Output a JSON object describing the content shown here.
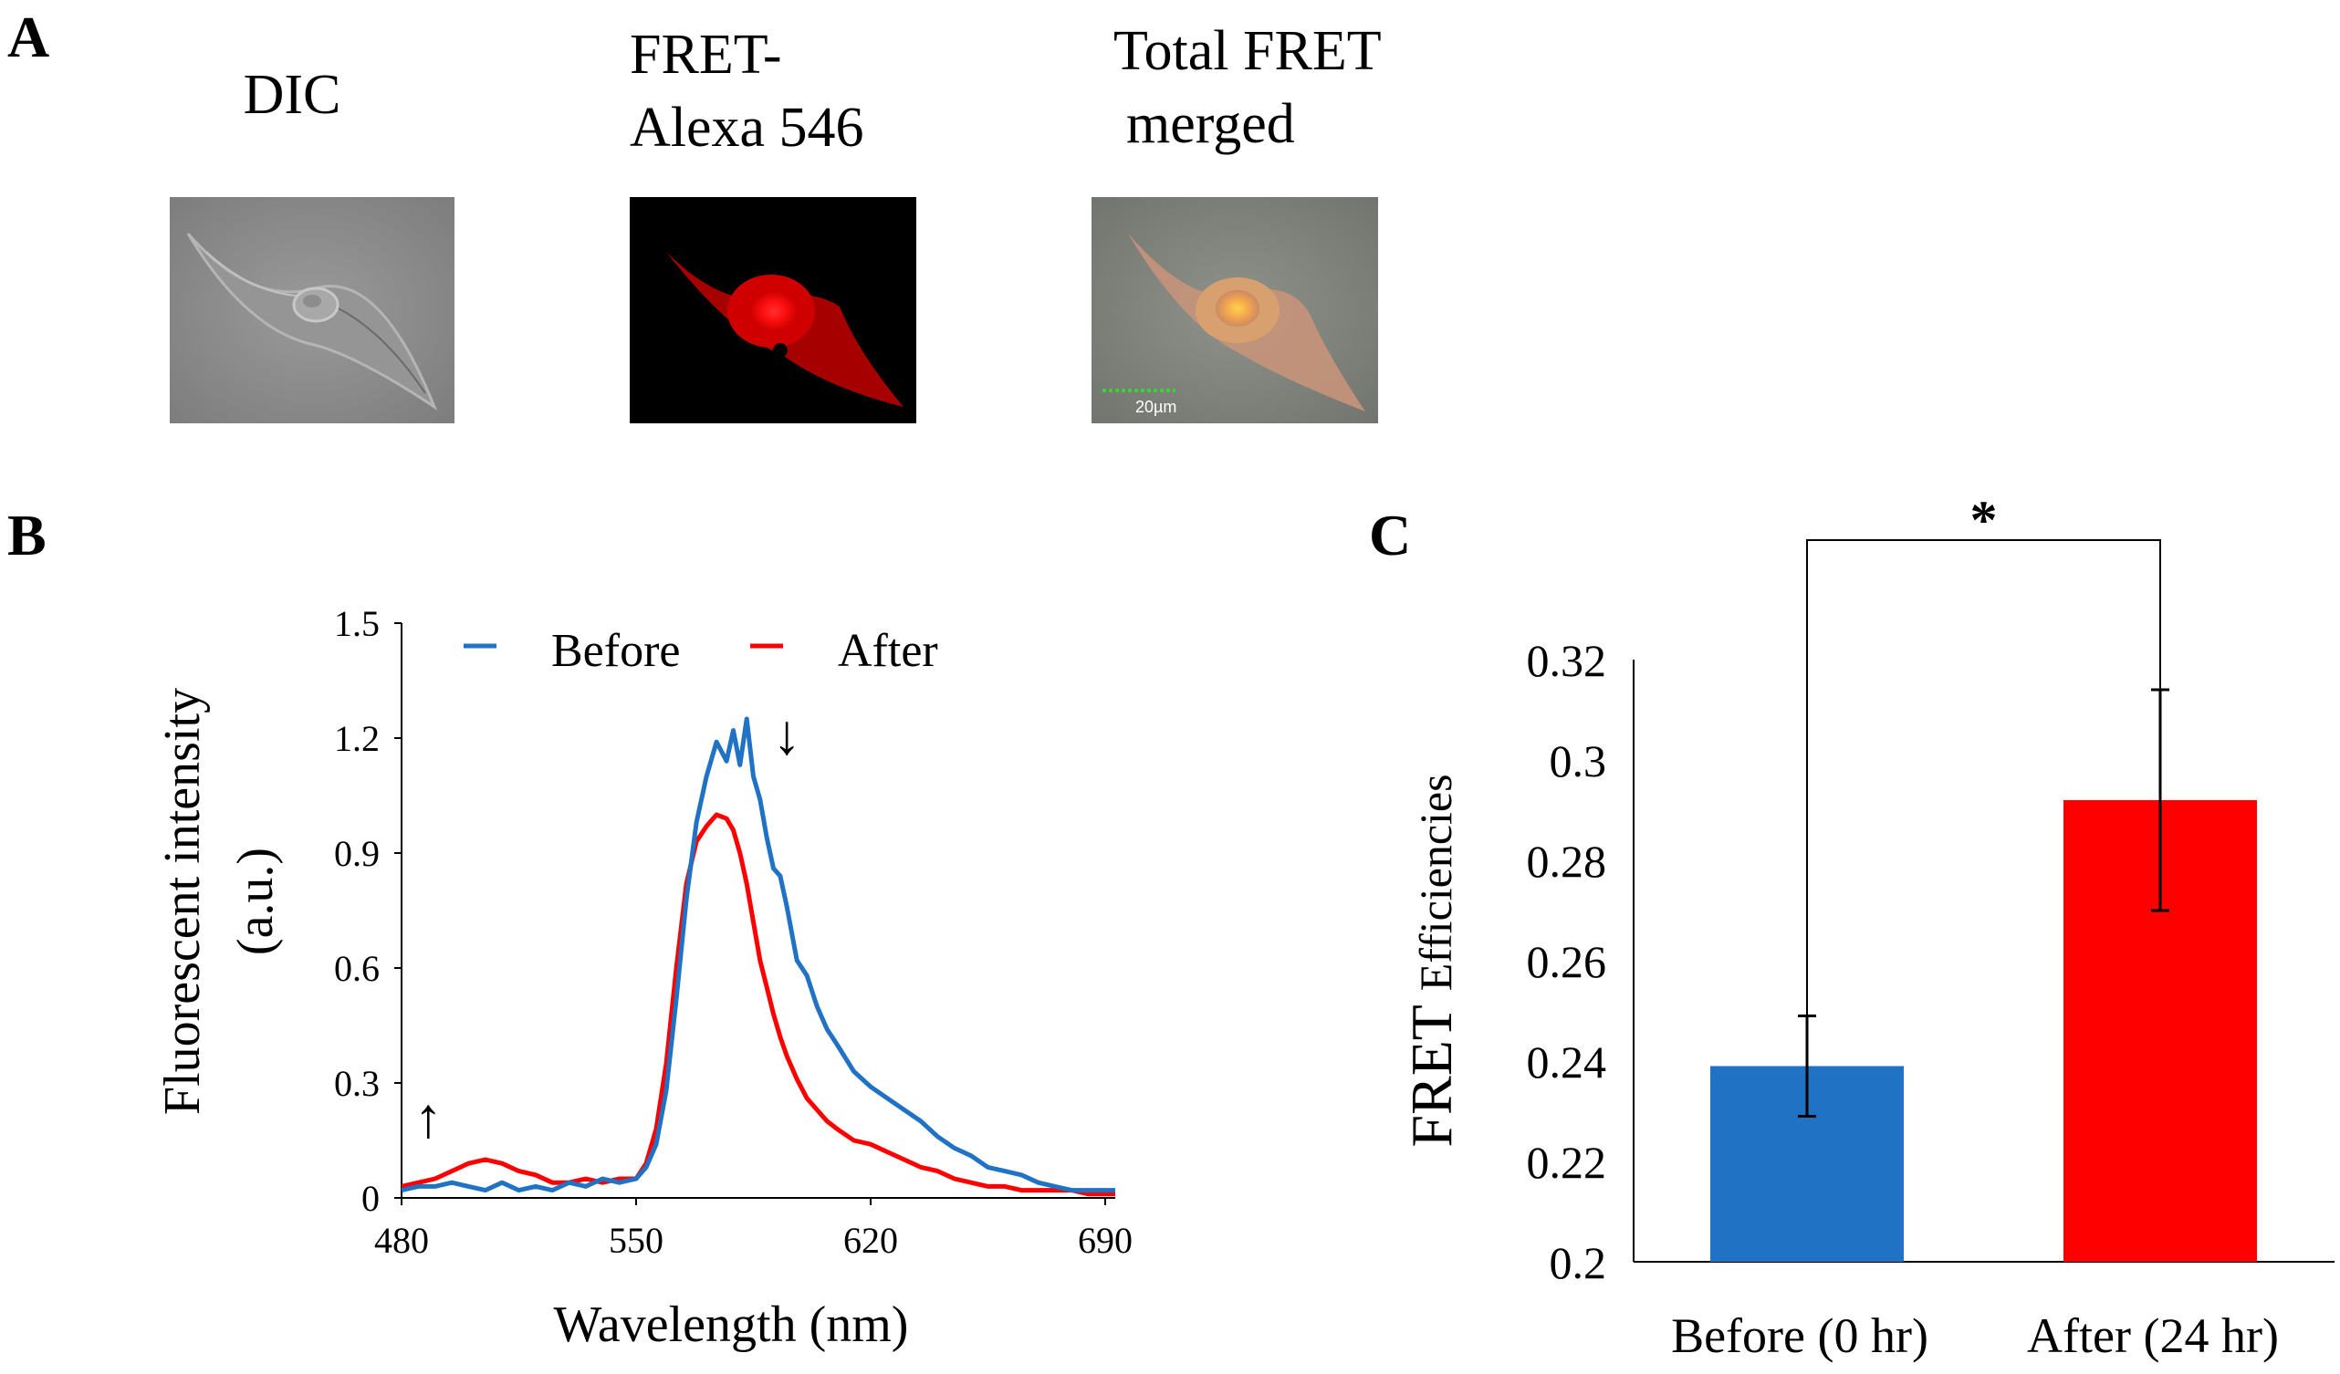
{
  "panels": {
    "a": {
      "letter": "A"
    },
    "b": {
      "letter": "B"
    },
    "c": {
      "letter": "C"
    }
  },
  "micrographs": [
    {
      "caption_lines": [
        "DIC"
      ],
      "kind": "dic"
    },
    {
      "caption_lines": [
        "FRET-",
        "Alexa 546"
      ],
      "kind": "fret"
    },
    {
      "caption_lines": [
        "Total FRET",
        "merged"
      ],
      "kind": "merged",
      "scale_bar_label": "20µm"
    }
  ],
  "colors": {
    "before": "#1f72c4",
    "after": "#ff0000",
    "axis": "#000000",
    "scale_bar": "#3bd13b"
  },
  "chart_data": [
    {
      "id": "spectrum",
      "type": "line",
      "xlabel": "Wavelength (nm)",
      "ylabel_lines": [
        "Fluorescent intensity",
        "(a.u.)"
      ],
      "xlim": [
        480,
        693
      ],
      "ylim": [
        0,
        1.5
      ],
      "xticks": [
        480,
        550,
        620,
        690
      ],
      "yticks": [
        0,
        0.3,
        0.6,
        0.9,
        1.2,
        1.5
      ],
      "ytick_labels": [
        "0",
        "0.3",
        "0.6",
        "0.9",
        "1.2",
        "1.5"
      ],
      "legend": [
        "Before",
        "After"
      ],
      "annotations": [
        {
          "symbol": "↑",
          "x": 488,
          "y": 0.16,
          "meaning": "after-curve increase"
        },
        {
          "symbol": "↓",
          "x": 595,
          "y": 1.16,
          "meaning": "before-curve decrease"
        }
      ],
      "series": [
        {
          "name": "Before",
          "x": [
            480,
            485,
            490,
            495,
            500,
            505,
            510,
            515,
            520,
            525,
            530,
            535,
            540,
            545,
            550,
            553,
            556,
            559,
            562,
            565,
            568,
            571,
            574,
            577,
            579,
            581,
            583,
            585,
            587,
            589,
            591,
            593,
            595,
            598,
            601,
            604,
            607,
            610,
            615,
            620,
            625,
            630,
            635,
            640,
            645,
            650,
            655,
            660,
            665,
            670,
            675,
            680,
            685,
            690,
            693
          ],
          "y": [
            0.02,
            0.03,
            0.03,
            0.04,
            0.03,
            0.02,
            0.04,
            0.02,
            0.03,
            0.02,
            0.04,
            0.03,
            0.05,
            0.04,
            0.05,
            0.08,
            0.14,
            0.28,
            0.52,
            0.78,
            0.98,
            1.1,
            1.19,
            1.14,
            1.22,
            1.13,
            1.25,
            1.1,
            1.04,
            0.94,
            0.86,
            0.84,
            0.76,
            0.62,
            0.58,
            0.5,
            0.44,
            0.4,
            0.33,
            0.29,
            0.26,
            0.23,
            0.2,
            0.16,
            0.13,
            0.11,
            0.08,
            0.07,
            0.06,
            0.04,
            0.03,
            0.02,
            0.02,
            0.02,
            0.02
          ]
        },
        {
          "name": "After",
          "x": [
            480,
            485,
            490,
            495,
            500,
            505,
            510,
            515,
            520,
            525,
            530,
            535,
            540,
            545,
            550,
            553,
            556,
            559,
            562,
            565,
            568,
            571,
            574,
            577,
            579,
            581,
            583,
            585,
            587,
            589,
            591,
            593,
            595,
            598,
            601,
            604,
            607,
            610,
            615,
            620,
            625,
            630,
            635,
            640,
            645,
            650,
            655,
            660,
            665,
            670,
            675,
            680,
            685,
            690,
            693
          ],
          "y": [
            0.03,
            0.04,
            0.05,
            0.07,
            0.09,
            0.1,
            0.09,
            0.07,
            0.06,
            0.04,
            0.04,
            0.05,
            0.04,
            0.05,
            0.05,
            0.09,
            0.18,
            0.35,
            0.6,
            0.82,
            0.93,
            0.97,
            1.0,
            0.99,
            0.96,
            0.9,
            0.82,
            0.72,
            0.62,
            0.55,
            0.48,
            0.42,
            0.37,
            0.31,
            0.26,
            0.23,
            0.2,
            0.18,
            0.15,
            0.14,
            0.12,
            0.1,
            0.08,
            0.07,
            0.05,
            0.04,
            0.03,
            0.03,
            0.02,
            0.02,
            0.02,
            0.02,
            0.01,
            0.01,
            0.01
          ]
        }
      ]
    },
    {
      "id": "efficiency",
      "type": "bar",
      "categories": [
        "Before (0 hr)",
        "After (24 hr)"
      ],
      "values": [
        0.239,
        0.292
      ],
      "errors": [
        0.01,
        0.022
      ],
      "ylim": [
        0.2,
        0.32
      ],
      "yticks": [
        0.2,
        0.22,
        0.24,
        0.26,
        0.28,
        0.3,
        0.32
      ],
      "ytick_labels": [
        "0.2",
        "0.22",
        "0.24",
        "0.26",
        "0.28",
        "0.3",
        "0.32"
      ],
      "ylabel_main": "FRET ",
      "ylabel_small": "Efficiencies",
      "significance": "*"
    }
  ]
}
